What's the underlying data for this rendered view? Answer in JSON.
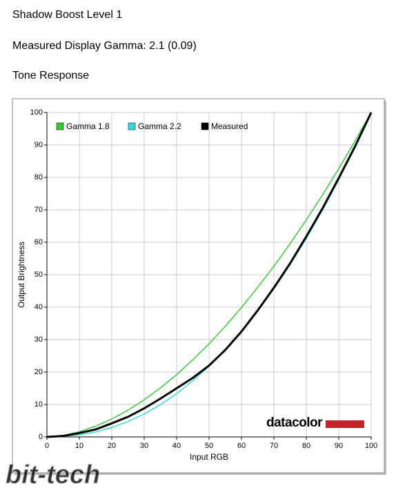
{
  "header": {
    "title": "Shadow Boost Level 1",
    "subtitle": "Measured Display Gamma: 2.1 (0.09)"
  },
  "chart_data": {
    "type": "line",
    "title": "Tone Response",
    "x_label": "Input RGB",
    "y_label": "Output Brightness",
    "x": [
      0,
      5,
      10,
      15,
      20,
      25,
      30,
      35,
      40,
      45,
      50,
      55,
      60,
      65,
      70,
      75,
      80,
      85,
      90,
      95,
      100
    ],
    "series": [
      {
        "name": "Gamma 1.8",
        "color": "#33cc33",
        "values": [
          0,
          0.46,
          1.58,
          3.29,
          5.52,
          8.25,
          11.45,
          15.1,
          19.2,
          23.8,
          28.7,
          34.1,
          39.9,
          46.1,
          52.6,
          59.6,
          66.9,
          74.6,
          82.7,
          91.2,
          100
        ]
      },
      {
        "name": "Gamma 2.2",
        "color": "#33dddd",
        "values": [
          0,
          0.14,
          0.63,
          1.54,
          2.9,
          4.74,
          7.07,
          9.93,
          13.3,
          17.3,
          21.8,
          26.8,
          32.5,
          38.8,
          45.6,
          53.1,
          61.2,
          69.9,
          79.3,
          89.3,
          100
        ]
      },
      {
        "name": "Measured",
        "color": "#000000",
        "values": [
          0,
          0.3,
          1.2,
          2.3,
          4.2,
          6.2,
          8.8,
          11.8,
          15,
          18.2,
          22,
          26.8,
          32.5,
          39,
          46,
          53.5,
          61.8,
          70.5,
          79.8,
          89.5,
          100
        ]
      }
    ],
    "xlim": [
      0,
      100
    ],
    "xticks": [
      0,
      10,
      20,
      30,
      40,
      50,
      60,
      70,
      80,
      90,
      100
    ],
    "ylim": [
      0,
      100
    ],
    "yticks": [
      0,
      10,
      20,
      30,
      40,
      50,
      60,
      70,
      80,
      90,
      100
    ],
    "grid": true,
    "legend": "top-left",
    "logo": "datacolor",
    "watermark": "bit-tech"
  }
}
